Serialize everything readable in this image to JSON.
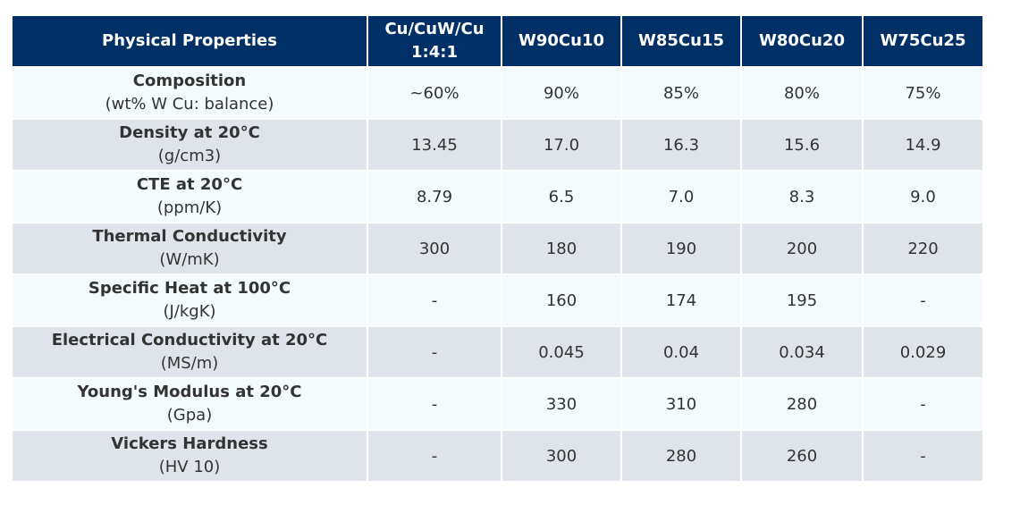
{
  "table": {
    "headers": [
      "Physical Properties",
      "Cu/CuW/Cu 1:4:1",
      "W90Cu10",
      "W85Cu15",
      "W80Cu20",
      "W75Cu25"
    ],
    "rows": [
      {
        "name": "Composition",
        "unit": "(wt% W Cu: balance)",
        "values": [
          "~60%",
          "90%",
          "85%",
          "80%",
          "75%"
        ]
      },
      {
        "name": "Density at 20°C",
        "unit": "(g/cm3)",
        "values": [
          "13.45",
          "17.0",
          "16.3",
          "15.6",
          "14.9"
        ]
      },
      {
        "name": "CTE at 20°C",
        "unit": "(ppm/K)",
        "values": [
          "8.79",
          "6.5",
          "7.0",
          "8.3",
          "9.0"
        ]
      },
      {
        "name": "Thermal Conductivity",
        "unit": "(W/mK)",
        "values": [
          "300",
          "180",
          "190",
          "200",
          "220"
        ]
      },
      {
        "name": "Specific Heat at 100°C",
        "unit": "(J/kgK)",
        "values": [
          "-",
          "160",
          "174",
          "195",
          "-"
        ]
      },
      {
        "name": "Electrical Conductivity at 20°C",
        "unit": "(MS/m)",
        "values": [
          "-",
          "0.045",
          "0.04",
          "0.034",
          "0.029"
        ]
      },
      {
        "name": "Young's Modulus at 20°C",
        "unit": "(Gpa)",
        "values": [
          "-",
          "330",
          "310",
          "280",
          "-"
        ]
      },
      {
        "name": "Vickers Hardness",
        "unit": "(HV 10)",
        "values": [
          "-",
          "300",
          "280",
          "260",
          "-"
        ]
      }
    ]
  },
  "colors": {
    "header_bg": "#003066",
    "header_text": "#ffffff",
    "row_light": "#f4fbfc",
    "row_dark": "#dfe3ea",
    "text": "#333333"
  }
}
